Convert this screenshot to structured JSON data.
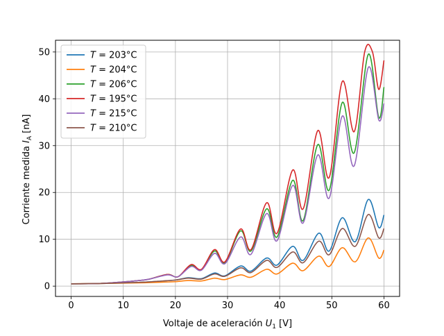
{
  "chart_data": {
    "type": "line",
    "xlabel_main": "Voltaje de aceleración ",
    "xlabel_sym": "U",
    "xlabel_sub": "1",
    "xlabel_unit": " [V]",
    "ylabel_main": "Corriente medida ",
    "ylabel_sym": "I",
    "ylabel_sub": "A",
    "ylabel_unit": " [nA]",
    "xlim": [
      -3,
      63
    ],
    "ylim": [
      -2.2,
      52.5
    ],
    "xticks": [
      0,
      10,
      20,
      30,
      40,
      50,
      60
    ],
    "yticks": [
      0,
      10,
      20,
      30,
      40,
      50
    ],
    "grid": true,
    "legend_position": "upper-left",
    "legend_prefix": "T",
    "legend_eq": " = ",
    "series": [
      {
        "name": "203°C",
        "color": "#1f77b4",
        "x": [
          0,
          5,
          10,
          13,
          15,
          17.5,
          20,
          22.5,
          25,
          27.5,
          29.5,
          32.5,
          34.5,
          37.5,
          39.5,
          42.5,
          44.5,
          47.5,
          49.5,
          52,
          54.5,
          57,
          59,
          60
        ],
        "y": [
          0.5,
          0.55,
          0.7,
          0.8,
          0.9,
          1.1,
          1.3,
          1.8,
          1.6,
          2.8,
          2.2,
          4.3,
          3.2,
          6.0,
          4.5,
          8.5,
          5.5,
          11.3,
          7.5,
          14.6,
          9.5,
          18.5,
          12.5,
          15.2
        ]
      },
      {
        "name": "204°C",
        "color": "#ff7f0e",
        "x": [
          0,
          5,
          10,
          13,
          15,
          17.5,
          20,
          22.5,
          25,
          27.5,
          29.5,
          32.5,
          34.5,
          37.5,
          39.5,
          42.5,
          44.5,
          47.5,
          49.5,
          52,
          54.5,
          57,
          59,
          60
        ],
        "y": [
          0.5,
          0.55,
          0.65,
          0.7,
          0.75,
          0.85,
          0.95,
          1.2,
          1.1,
          1.7,
          1.4,
          2.4,
          1.9,
          3.6,
          2.6,
          4.9,
          3.3,
          6.4,
          4.2,
          8.2,
          5.2,
          10.3,
          6.0,
          7.7
        ]
      },
      {
        "name": "206°C",
        "color": "#2ca02c",
        "x": [
          0,
          5,
          10,
          13,
          15,
          18.5,
          20.5,
          23,
          25,
          27.5,
          29.5,
          32.5,
          34.5,
          37.5,
          39.5,
          42.5,
          44.5,
          47.3,
          49.5,
          52,
          54.3,
          57,
          59,
          60
        ],
        "y": [
          0.5,
          0.55,
          0.9,
          1.2,
          1.5,
          2.5,
          2.0,
          4.4,
          3.5,
          7.5,
          5.0,
          11.8,
          7.5,
          16.5,
          10.5,
          22.6,
          14.0,
          30.2,
          20.5,
          39.2,
          28.5,
          49.5,
          36.0,
          42.5
        ]
      },
      {
        "name": "195°C",
        "color": "#d62728",
        "x": [
          0,
          5,
          10,
          13,
          15,
          18.5,
          20.5,
          23,
          25,
          27.5,
          29.5,
          32.5,
          34.5,
          37.5,
          39.5,
          42.5,
          44.5,
          47.3,
          49.5,
          52,
          54.3,
          56.3,
          57.8,
          59,
          60
        ],
        "y": [
          0.5,
          0.55,
          0.9,
          1.2,
          1.5,
          2.5,
          2.0,
          4.6,
          3.6,
          7.8,
          5.2,
          12.2,
          7.8,
          17.8,
          11.3,
          24.8,
          16.5,
          33.2,
          23.2,
          43.7,
          33.0,
          50.0,
          50.0,
          42.0,
          48.2
        ]
      },
      {
        "name": "215°C",
        "color": "#9467bd",
        "x": [
          0,
          5,
          10,
          13,
          15,
          18.5,
          20.5,
          23,
          25,
          27.5,
          29.5,
          32.5,
          34.5,
          37.5,
          39.5,
          42.5,
          44.5,
          47.3,
          49.5,
          52,
          54.3,
          57,
          59,
          60
        ],
        "y": [
          0.5,
          0.55,
          0.9,
          1.2,
          1.5,
          2.4,
          2.0,
          4.2,
          3.4,
          7.0,
          4.8,
          10.5,
          6.8,
          15.5,
          9.7,
          21.5,
          13.5,
          28.0,
          18.8,
          36.3,
          25.7,
          46.7,
          35.5,
          39.0
        ]
      },
      {
        "name": "210°C",
        "color": "#8c564b",
        "x": [
          0,
          5,
          10,
          13,
          15,
          17.5,
          20,
          22.5,
          25,
          27.5,
          29.5,
          32.5,
          34.5,
          37.5,
          39.5,
          42.5,
          44.5,
          47.5,
          49.5,
          52,
          54.5,
          57,
          59,
          60
        ],
        "y": [
          0.5,
          0.55,
          0.7,
          0.8,
          0.9,
          1.1,
          1.3,
          1.7,
          1.5,
          2.6,
          2.1,
          3.9,
          2.9,
          5.5,
          4.0,
          7.3,
          5.0,
          9.6,
          6.7,
          12.3,
          8.5,
          15.3,
          10.3,
          12.3
        ]
      }
    ]
  }
}
